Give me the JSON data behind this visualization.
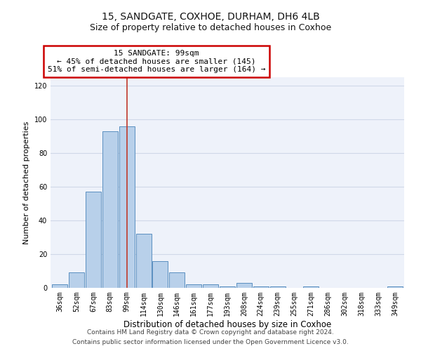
{
  "title1": "15, SANDGATE, COXHOE, DURHAM, DH6 4LB",
  "title2": "Size of property relative to detached houses in Coxhoe",
  "xlabel": "Distribution of detached houses by size in Coxhoe",
  "ylabel": "Number of detached properties",
  "categories": [
    "36sqm",
    "52sqm",
    "67sqm",
    "83sqm",
    "99sqm",
    "114sqm",
    "130sqm",
    "146sqm",
    "161sqm",
    "177sqm",
    "193sqm",
    "208sqm",
    "224sqm",
    "239sqm",
    "255sqm",
    "271sqm",
    "286sqm",
    "302sqm",
    "318sqm",
    "333sqm",
    "349sqm"
  ],
  "values": [
    2,
    9,
    57,
    93,
    96,
    32,
    16,
    9,
    2,
    2,
    1,
    3,
    1,
    1,
    0,
    1,
    0,
    0,
    0,
    0,
    1
  ],
  "bar_color": "#b8d0ea",
  "bar_edge_color": "#5a8fc0",
  "highlight_index": 4,
  "highlight_line_color": "#c0392b",
  "annotation_text": "15 SANDGATE: 99sqm\n← 45% of detached houses are smaller (145)\n51% of semi-detached houses are larger (164) →",
  "annotation_box_color": "#ffffff",
  "annotation_box_edge": "#cc0000",
  "ylim": [
    0,
    125
  ],
  "yticks": [
    0,
    20,
    40,
    60,
    80,
    100,
    120
  ],
  "grid_color": "#d0d8e8",
  "background_color": "#eef2fa",
  "footer1": "Contains HM Land Registry data © Crown copyright and database right 2024.",
  "footer2": "Contains public sector information licensed under the Open Government Licence v3.0.",
  "title1_fontsize": 10,
  "title2_fontsize": 9,
  "xlabel_fontsize": 8.5,
  "ylabel_fontsize": 8,
  "tick_fontsize": 7,
  "footer_fontsize": 6.5,
  "annotation_fontsize": 8
}
